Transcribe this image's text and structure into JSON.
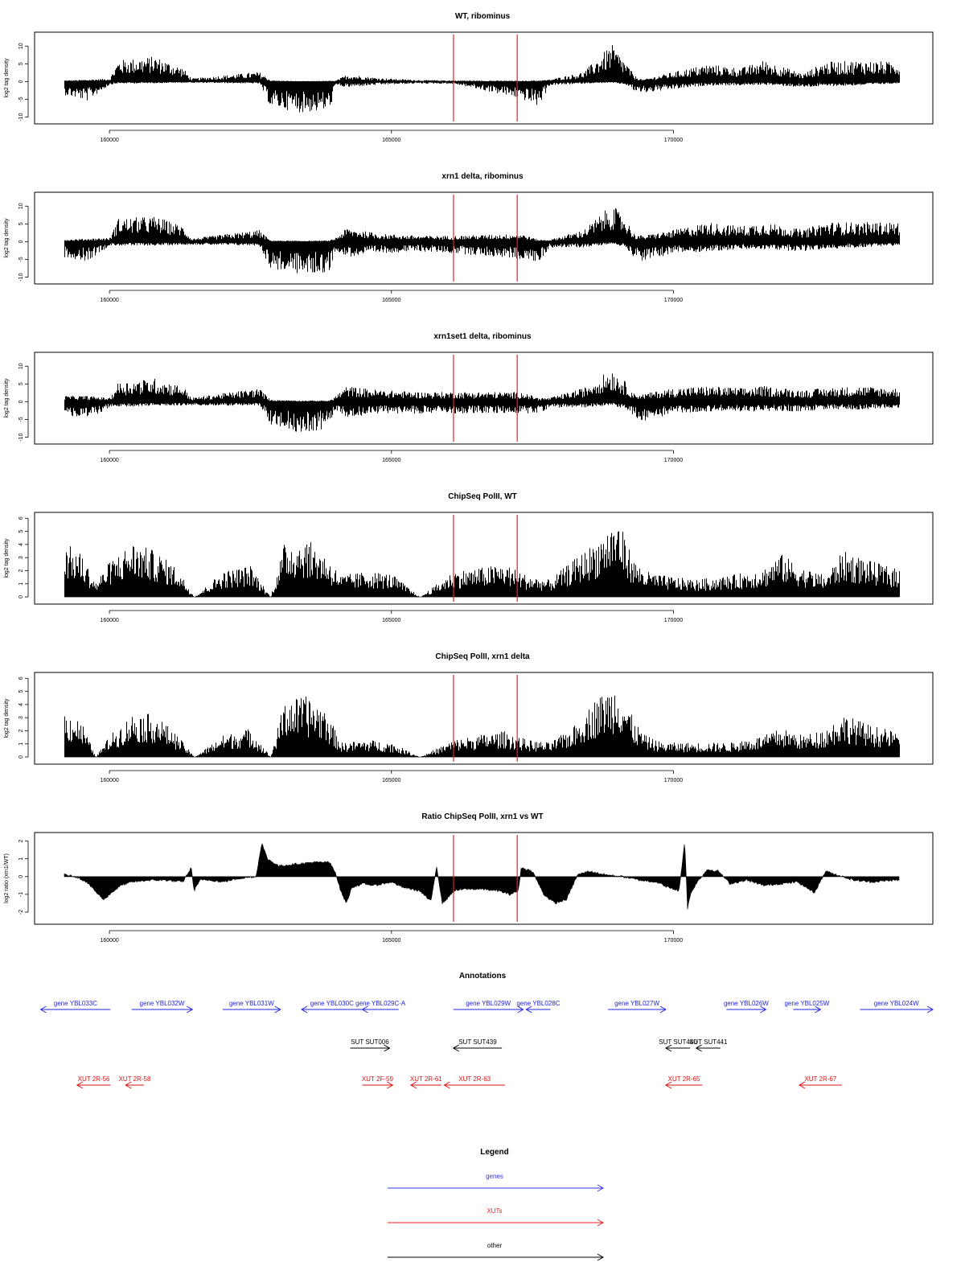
{
  "chart_data": [
    {
      "type": "bar",
      "title": "WT, ribominus",
      "ylabel": "log2 tag density",
      "xlim": [
        159200,
        174000
      ],
      "ylim": [
        -11,
        13
      ],
      "yticks": [
        -10,
        -5,
        0,
        5,
        10
      ],
      "xticks": [
        160000,
        165000,
        170000
      ],
      "marker_lines_x": [
        166100,
        167230
      ],
      "marker_color": "#e8201c",
      "bar_color": "#000000",
      "series": [
        {
          "x": [
            159200,
            159600,
            160000,
            160150,
            160800,
            161300,
            161450,
            162650,
            162850,
            163400,
            163900,
            164000,
            164200,
            164800,
            165500,
            166100,
            167300,
            167600,
            167800,
            168400,
            168900,
            169150,
            169300,
            169450,
            170000,
            170600,
            171200,
            171600,
            172300,
            172650,
            173300,
            173900
          ],
          "pos": [
            0.3,
            0.5,
            0.8,
            5.5,
            6.5,
            3.5,
            0.8,
            2.5,
            0.3,
            0.1,
            0.2,
            0.2,
            1.8,
            0.9,
            0.4,
            0.3,
            0.2,
            0.3,
            0.5,
            2.5,
            9.5,
            5.0,
            1.5,
            0.5,
            2.5,
            4.5,
            3.5,
            5.5,
            2.0,
            5.0,
            5.5,
            5.0
          ],
          "neg": [
            -3.5,
            -5.0,
            -0.8,
            -0.5,
            -0.4,
            -0.3,
            -0.3,
            -0.5,
            -6.5,
            -8.0,
            -7.5,
            -1.0,
            -1.5,
            -0.8,
            -0.5,
            -0.6,
            -4.5,
            -6.5,
            -1.0,
            -0.5,
            -0.3,
            -0.8,
            -2.5,
            -3.0,
            -2.0,
            -1.0,
            -1.0,
            -0.8,
            -1.5,
            -1.2,
            -1.0,
            -0.5
          ]
        }
      ]
    },
    {
      "type": "bar",
      "title": "xrn1 delta, ribominus",
      "ylabel": "log2 tag density",
      "xlim": [
        159200,
        174000
      ],
      "ylim": [
        -11,
        13
      ],
      "yticks": [
        -10,
        -5,
        0,
        5,
        10
      ],
      "xticks": [
        160000,
        165000,
        170000
      ],
      "marker_lines_x": [
        166100,
        167230
      ],
      "marker_color": "#e8201c",
      "bar_color": "#000000",
      "series": [
        {
          "x": [
            159200,
            159600,
            160000,
            160150,
            160800,
            161300,
            161450,
            162650,
            162850,
            163400,
            163900,
            164000,
            164200,
            164800,
            165500,
            166100,
            167300,
            167600,
            167800,
            168400,
            168900,
            169150,
            169300,
            169450,
            170000,
            170600,
            171200,
            171600,
            172300,
            172650,
            173300,
            173900
          ],
          "pos": [
            0.5,
            0.8,
            1.0,
            6.0,
            6.5,
            4.0,
            0.8,
            3.0,
            0.3,
            0.2,
            0.3,
            1.0,
            3.5,
            2.0,
            1.5,
            1.5,
            2.0,
            0.5,
            0.5,
            3.0,
            9.5,
            6.0,
            2.0,
            1.5,
            3.0,
            5.0,
            4.0,
            5.0,
            3.0,
            5.0,
            5.0,
            5.0
          ],
          "neg": [
            -4.0,
            -5.0,
            -1.0,
            -1.0,
            -1.0,
            -0.8,
            -0.8,
            -1.0,
            -7.0,
            -8.5,
            -8.0,
            -2.0,
            -4.0,
            -3.0,
            -2.5,
            -3.0,
            -4.5,
            -5.5,
            -1.5,
            -1.5,
            -0.5,
            -1.5,
            -4.0,
            -5.0,
            -3.0,
            -2.5,
            -2.0,
            -2.0,
            -2.5,
            -2.0,
            -1.5,
            -1.0
          ]
        }
      ]
    },
    {
      "type": "bar",
      "title": "xrn1set1 delta, ribominus",
      "ylabel": "log2 tag density",
      "xlim": [
        159200,
        174000
      ],
      "ylim": [
        -11,
        13
      ],
      "yticks": [
        -10,
        -5,
        0,
        5,
        10
      ],
      "xticks": [
        160000,
        165000,
        170000
      ],
      "marker_lines_x": [
        166100,
        167230
      ],
      "marker_color": "#e8201c",
      "bar_color": "#000000",
      "series": [
        {
          "x": [
            159200,
            159600,
            160000,
            160150,
            160800,
            161300,
            161450,
            162650,
            162850,
            163400,
            163900,
            164000,
            164200,
            164800,
            165500,
            166100,
            167300,
            167600,
            167800,
            168400,
            168900,
            169150,
            169300,
            169450,
            170000,
            170600,
            171200,
            171600,
            172300,
            172650,
            173300,
            173900
          ],
          "pos": [
            1.5,
            1.5,
            1.0,
            5.0,
            6.0,
            4.0,
            1.0,
            3.5,
            0.5,
            0.3,
            0.3,
            1.5,
            4.0,
            3.0,
            2.5,
            2.5,
            2.5,
            1.0,
            1.0,
            3.5,
            8.5,
            5.0,
            2.0,
            2.0,
            3.5,
            4.0,
            3.5,
            4.0,
            3.0,
            3.5,
            4.0,
            3.5
          ],
          "neg": [
            -3.5,
            -4.5,
            -1.5,
            -1.5,
            -1.0,
            -1.0,
            -1.0,
            -1.0,
            -6.0,
            -8.0,
            -7.0,
            -2.0,
            -4.0,
            -3.0,
            -3.0,
            -3.0,
            -3.0,
            -3.0,
            -1.5,
            -1.5,
            -0.8,
            -2.0,
            -4.0,
            -5.0,
            -3.0,
            -2.5,
            -2.5,
            -2.5,
            -2.5,
            -2.0,
            -2.0,
            -1.5
          ]
        }
      ]
    },
    {
      "type": "bar",
      "title": "ChipSeq PolII, WT",
      "ylabel": "log2 tag density",
      "xlim": [
        159200,
        174000
      ],
      "ylim": [
        -0.3,
        6.2
      ],
      "yticks": [
        0,
        1,
        2,
        3,
        4,
        5,
        6
      ],
      "xticks": [
        160000,
        165000,
        170000
      ],
      "marker_lines_x": [
        166100,
        167230
      ],
      "marker_color": "#e8201c",
      "bar_color": "#000000",
      "series": [
        {
          "x": [
            159200,
            159500,
            159750,
            160000,
            160400,
            160800,
            161200,
            161500,
            162000,
            162500,
            162850,
            163100,
            163500,
            163800,
            164100,
            164600,
            165000,
            165500,
            166100,
            166500,
            167000,
            167400,
            167800,
            168200,
            168600,
            169000,
            169300,
            169500,
            169800,
            170400,
            171000,
            171600,
            171900,
            172300,
            172700,
            173000,
            173500,
            173900
          ],
          "pos": [
            3.8,
            3.0,
            1.0,
            2.5,
            3.8,
            3.2,
            2.0,
            0.0,
            1.8,
            2.2,
            0.0,
            3.8,
            4.0,
            3.0,
            1.5,
            1.8,
            1.6,
            0.0,
            1.8,
            2.0,
            2.3,
            1.5,
            1.2,
            2.5,
            3.8,
            5.5,
            2.5,
            1.8,
            1.5,
            1.2,
            1.5,
            2.0,
            3.0,
            2.0,
            1.5,
            3.2,
            2.5,
            2.0
          ],
          "neg": [
            0,
            0,
            0,
            0,
            0,
            0,
            0,
            0,
            0,
            0,
            0,
            0,
            0,
            0,
            0,
            0,
            0,
            0,
            0,
            0,
            0,
            0,
            0,
            0,
            0,
            0,
            0,
            0,
            0,
            0,
            0,
            0,
            0,
            0,
            0,
            0,
            0,
            0
          ]
        }
      ]
    },
    {
      "type": "bar",
      "title": "ChipSeq PolII, xrn1 delta",
      "ylabel": "log2 tag density",
      "xlim": [
        159200,
        174000
      ],
      "ylim": [
        -0.3,
        6.2
      ],
      "yticks": [
        0,
        1,
        2,
        3,
        4,
        5,
        6
      ],
      "xticks": [
        160000,
        165000,
        170000
      ],
      "marker_lines_x": [
        166100,
        167230
      ],
      "marker_color": "#e8201c",
      "bar_color": "#000000",
      "series": [
        {
          "x": [
            159200,
            159500,
            159750,
            160000,
            160400,
            160800,
            161200,
            161500,
            162000,
            162500,
            162850,
            163100,
            163500,
            163800,
            164100,
            164600,
            165000,
            165500,
            166100,
            166500,
            167000,
            167400,
            167800,
            168200,
            168600,
            169000,
            169300,
            169500,
            169800,
            170400,
            171000,
            171600,
            171900,
            172300,
            172700,
            173000,
            173500,
            173900
          ],
          "pos": [
            3.2,
            2.5,
            0.0,
            1.5,
            3.0,
            3.0,
            1.5,
            0.0,
            1.5,
            2.0,
            0.0,
            4.0,
            4.2,
            3.5,
            1.0,
            1.2,
            1.0,
            0.0,
            1.2,
            1.5,
            1.8,
            1.2,
            1.0,
            2.0,
            4.0,
            5.2,
            2.5,
            1.5,
            1.0,
            1.0,
            1.0,
            1.5,
            2.0,
            1.5,
            2.0,
            3.0,
            2.2,
            1.8
          ],
          "neg": [
            0,
            0,
            0,
            0,
            0,
            0,
            0,
            0,
            0,
            0,
            0,
            0,
            0,
            0,
            0,
            0,
            0,
            0,
            0,
            0,
            0,
            0,
            0,
            0,
            0,
            0,
            0,
            0,
            0,
            0,
            0,
            0,
            0,
            0,
            0,
            0,
            0,
            0
          ]
        }
      ]
    },
    {
      "type": "area",
      "title": "Ratio ChipSeq PolII, xrn1 vs WT",
      "ylabel": "log2 ratio (xrn1/WT)",
      "xlim": [
        159200,
        174000
      ],
      "ylim": [
        -2.5,
        2.3
      ],
      "yticks": [
        -2,
        -1,
        0,
        1,
        2
      ],
      "xticks": [
        160000,
        165000,
        170000
      ],
      "marker_lines_x": [
        166100,
        167230
      ],
      "marker_color": "#e8201c",
      "bar_color": "#000000",
      "series": [
        {
          "x": [
            159200,
            159400,
            159600,
            159800,
            159900,
            160000,
            160200,
            160400,
            160700,
            161000,
            161300,
            161450,
            161500,
            161600,
            161800,
            162000,
            162300,
            162600,
            162700,
            162800,
            163000,
            163300,
            163600,
            163900,
            164000,
            164100,
            164200,
            164300,
            164500,
            164700,
            165000,
            165200,
            165500,
            165700,
            165800,
            165900,
            166000,
            166100,
            166300,
            166600,
            166900,
            167100,
            167250,
            167300,
            167500,
            167700,
            167900,
            168100,
            168300,
            168500,
            168800,
            169100,
            169400,
            169700,
            169900,
            170100,
            170200,
            170250,
            170300,
            170400,
            170600,
            170800,
            171000,
            171300,
            171600,
            171900,
            172200,
            172500,
            172700,
            172900,
            173200,
            173500,
            173900
          ],
          "y": [
            0.1,
            0.0,
            -0.3,
            -1.0,
            -1.3,
            -1.0,
            -0.5,
            -0.3,
            -0.2,
            -0.2,
            -0.3,
            0.5,
            -0.8,
            -0.2,
            -0.2,
            -0.3,
            -0.1,
            0.0,
            1.9,
            1.0,
            0.6,
            0.7,
            0.8,
            0.8,
            0.3,
            -0.8,
            -1.5,
            -0.6,
            -0.4,
            -0.5,
            -0.3,
            -0.6,
            -0.8,
            -1.4,
            0.6,
            -1.5,
            -1.2,
            -0.8,
            -0.7,
            -0.7,
            -0.8,
            -1.0,
            -0.8,
            0.5,
            0.3,
            -1.0,
            -1.5,
            -1.3,
            0.1,
            0.3,
            0.1,
            0.0,
            -0.2,
            -0.3,
            -0.6,
            -0.8,
            2.0,
            -1.8,
            -1.0,
            -0.4,
            0.4,
            0.3,
            -0.4,
            -0.2,
            -0.5,
            -0.4,
            -0.3,
            -0.9,
            0.3,
            0.1,
            -0.2,
            -0.3,
            -0.2
          ]
        }
      ]
    }
  ],
  "annotations": {
    "title": "Annotations",
    "items": [
      {
        "name": "gene YBL033C",
        "start": 159300,
        "end": 160450,
        "dir": "left",
        "row": 0,
        "color": "#2222dd"
      },
      {
        "name": "gene YBL032W",
        "start": 160800,
        "end": 161800,
        "dir": "right",
        "row": 0,
        "color": "#2222dd"
      },
      {
        "name": "gene YBL031W",
        "start": 162300,
        "end": 163250,
        "dir": "right",
        "row": 0,
        "color": "#2222dd"
      },
      {
        "name": "gene YBL030C",
        "start": 163600,
        "end": 164600,
        "dir": "left",
        "row": 0,
        "color": "#2222dd"
      },
      {
        "name": "gene YBL029C-A",
        "start": 164600,
        "end": 165200,
        "dir": "left",
        "row": 0,
        "color": "#2222dd"
      },
      {
        "name": "gene YBL029W",
        "start": 166100,
        "end": 167250,
        "dir": "right",
        "row": 0,
        "color": "#2222dd"
      },
      {
        "name": "gene YBL028C",
        "start": 167300,
        "end": 167700,
        "dir": "left",
        "row": 0,
        "color": "#2222dd"
      },
      {
        "name": "gene YBL027W",
        "start": 168650,
        "end": 169600,
        "dir": "right",
        "row": 0,
        "color": "#2222dd"
      },
      {
        "name": "gene YBL026W",
        "start": 170600,
        "end": 171250,
        "dir": "right",
        "row": 0,
        "color": "#2222dd"
      },
      {
        "name": "gene YBL025W",
        "start": 171700,
        "end": 172150,
        "dir": "right",
        "row": 0,
        "color": "#2222dd"
      },
      {
        "name": "gene YBL024W",
        "start": 172800,
        "end": 174000,
        "dir": "right",
        "row": 0,
        "color": "#2222dd"
      },
      {
        "name": "SUT SUT006",
        "start": 164400,
        "end": 165050,
        "dir": "right",
        "row": 1,
        "color": "#000000"
      },
      {
        "name": "SUT SUT439",
        "start": 166100,
        "end": 166900,
        "dir": "left",
        "row": 1,
        "color": "#000000"
      },
      {
        "name": "SUT SUT440",
        "start": 169600,
        "end": 170000,
        "dir": "left",
        "row": 1,
        "color": "#000000"
      },
      {
        "name": "SUT SUT441",
        "start": 170100,
        "end": 170500,
        "dir": "left",
        "row": 1,
        "color": "#000000"
      },
      {
        "name": "XUT 2R-56",
        "start": 159900,
        "end": 160450,
        "dir": "left",
        "row": 2,
        "color": "#dd1111"
      },
      {
        "name": "XUT 2R-58",
        "start": 160700,
        "end": 161000,
        "dir": "left",
        "row": 2,
        "color": "#dd1111"
      },
      {
        "name": "XUT 2F-59",
        "start": 164600,
        "end": 165100,
        "dir": "right",
        "row": 2,
        "color": "#dd1111"
      },
      {
        "name": "XUT 2R-61",
        "start": 165400,
        "end": 165900,
        "dir": "left",
        "row": 2,
        "color": "#dd1111"
      },
      {
        "name": "XUT 2R-63",
        "start": 165950,
        "end": 166950,
        "dir": "left",
        "row": 2,
        "color": "#dd1111"
      },
      {
        "name": "XUT 2R-65",
        "start": 169600,
        "end": 170200,
        "dir": "left",
        "row": 2,
        "color": "#dd1111"
      },
      {
        "name": "XUT 2R-67",
        "start": 171800,
        "end": 172500,
        "dir": "left",
        "row": 2,
        "color": "#dd1111"
      }
    ]
  },
  "legend": {
    "title": "Legend",
    "items": [
      {
        "label": "genes",
        "color": "#3333ee"
      },
      {
        "label": "XUTs",
        "color": "#ee2222"
      },
      {
        "label": "other",
        "color": "#000000"
      }
    ]
  }
}
